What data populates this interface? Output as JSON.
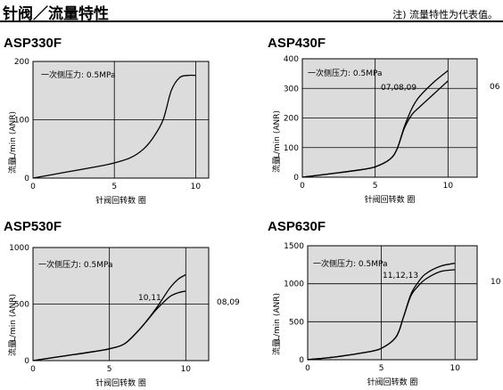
{
  "header": {
    "title": "针阀／流量特性",
    "note": "注) 流量特性为代表值。"
  },
  "chart_data": [
    {
      "type": "line",
      "title": "ASP330F",
      "xlabel": "针阀回转数  圈",
      "ylabel_top": "L/min (ANR)",
      "ylabel_bottom": "流量",
      "annotation": "一次侧压力: 0.5MPa",
      "xlim": [
        0,
        10.8
      ],
      "ylim": [
        0,
        200
      ],
      "xticks": [
        0,
        5,
        10
      ],
      "xtick_labels": [
        "0",
        "5",
        "10"
      ],
      "yticks": [
        0,
        100,
        200
      ],
      "ytick_labels": [
        "0",
        "100",
        "200"
      ],
      "grid": true,
      "series": [
        {
          "name": "",
          "x": [
            0,
            2,
            4,
            5,
            6,
            6.8,
            7.4,
            8.0,
            8.5,
            9.0,
            9.5,
            10.0
          ],
          "y": [
            0,
            10,
            20,
            26,
            35,
            50,
            70,
            100,
            150,
            172,
            176,
            176
          ]
        }
      ]
    },
    {
      "type": "line",
      "title": "ASP430F",
      "xlabel": "针阀回转数  圈",
      "ylabel_top": "L/min (ANR)",
      "ylabel_bottom": "流量",
      "annotation": "一次侧压力: 0.5MPa",
      "xlim": [
        0,
        12
      ],
      "ylim": [
        0,
        400
      ],
      "xticks": [
        0,
        5,
        10
      ],
      "xtick_labels": [
        "0",
        "5",
        "10"
      ],
      "yticks": [
        0,
        100,
        200,
        300,
        400
      ],
      "ytick_labels": [
        "0",
        "100",
        "200",
        "300",
        "400"
      ],
      "grid": true,
      "series": [
        {
          "name": "07,08,09",
          "x": [
            0,
            2,
            4,
            5,
            6,
            6.5,
            7,
            7.5,
            8,
            9,
            10
          ],
          "y": [
            0,
            12,
            25,
            35,
            60,
            95,
            170,
            230,
            270,
            320,
            360
          ]
        },
        {
          "name": "06",
          "x": [
            0,
            2,
            4,
            5,
            6,
            6.5,
            7,
            7.5,
            8,
            9,
            10
          ],
          "y": [
            0,
            12,
            25,
            35,
            60,
            95,
            165,
            210,
            235,
            280,
            325
          ]
        }
      ]
    },
    {
      "type": "line",
      "title": "ASP530F",
      "xlabel": "针阀回转数  圈",
      "ylabel_top": "L/min (ANR)",
      "ylabel_bottom": "流量",
      "annotation": "一次侧压力: 0.5MPa",
      "xlim": [
        0,
        11.5
      ],
      "ylim": [
        0,
        1000
      ],
      "xticks": [
        0,
        5,
        10
      ],
      "xtick_labels": [
        "0",
        "5",
        "10"
      ],
      "yticks": [
        0,
        500,
        1000
      ],
      "ytick_labels": [
        "0",
        "500",
        "1000"
      ],
      "grid": true,
      "series": [
        {
          "name": "10,11",
          "x": [
            0,
            2,
            4,
            5,
            6,
            7,
            8,
            8.5,
            9,
            9.5,
            10
          ],
          "y": [
            0,
            40,
            80,
            105,
            150,
            280,
            450,
            550,
            650,
            720,
            760
          ]
        },
        {
          "name": "08,09",
          "x": [
            0,
            2,
            4,
            5,
            6,
            7,
            8,
            8.5,
            9,
            9.5,
            10
          ],
          "y": [
            0,
            40,
            80,
            105,
            150,
            280,
            440,
            510,
            570,
            600,
            615
          ]
        }
      ]
    },
    {
      "type": "line",
      "title": "ASP630F",
      "xlabel": "针阀回转数  圈",
      "ylabel_top": "L/min (ANR)",
      "ylabel_bottom": "流量",
      "annotation": "一次侧压力: 0.5MPa",
      "xlim": [
        0,
        11.5
      ],
      "ylim": [
        0,
        1500
      ],
      "xticks": [
        0,
        5,
        10
      ],
      "xtick_labels": [
        "0",
        "5",
        "10"
      ],
      "yticks": [
        0,
        500,
        1000,
        1500
      ],
      "ytick_labels": [
        "0",
        "500",
        "1000",
        "1500"
      ],
      "grid": true,
      "series": [
        {
          "name": "11,12,13",
          "x": [
            0,
            2,
            4,
            5,
            6,
            6.5,
            7,
            7.5,
            8,
            9,
            10
          ],
          "y": [
            0,
            40,
            100,
            150,
            300,
            560,
            860,
            1020,
            1130,
            1230,
            1270
          ]
        },
        {
          "name": "10",
          "x": [
            0,
            2,
            4,
            5,
            6,
            6.5,
            7,
            7.5,
            8,
            9,
            10
          ],
          "y": [
            0,
            40,
            100,
            150,
            300,
            560,
            840,
            970,
            1060,
            1160,
            1185
          ]
        }
      ]
    }
  ]
}
